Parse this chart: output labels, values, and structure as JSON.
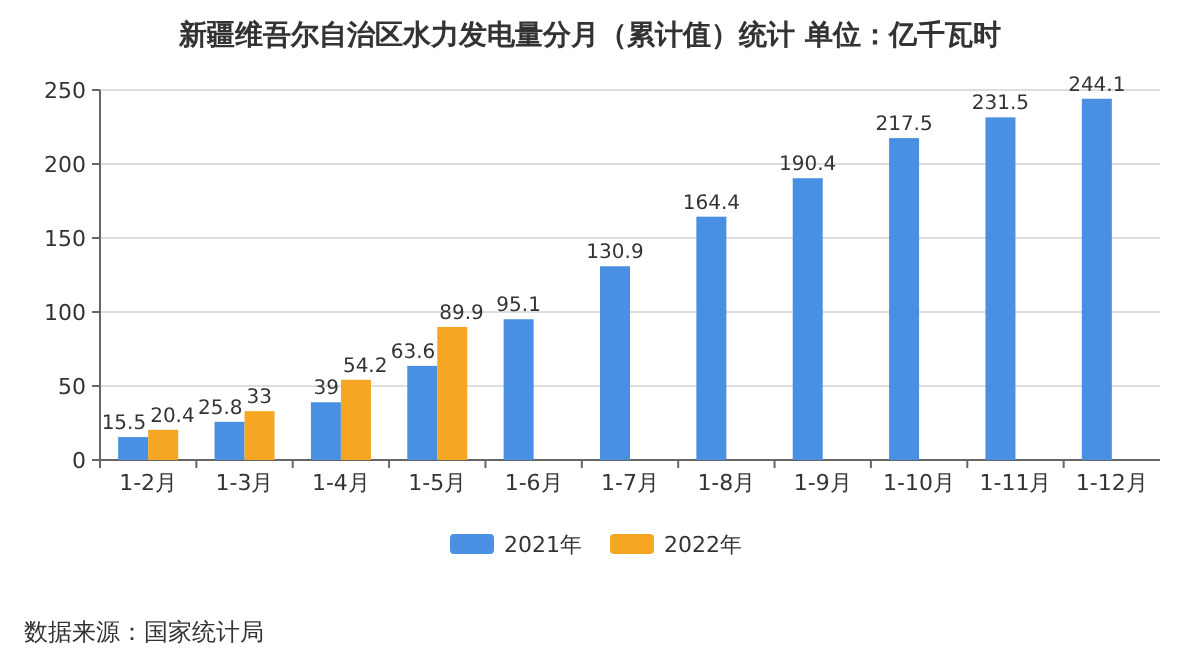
{
  "chart_data": {
    "type": "bar",
    "title": "新疆维吾尔自治区水力发电量分月（累计值）统计  单位：亿千瓦时",
    "categories": [
      "1-2月",
      "1-3月",
      "1-4月",
      "1-5月",
      "1-6月",
      "1-7月",
      "1-8月",
      "1-9月",
      "1-10月",
      "1-11月",
      "1-12月"
    ],
    "series": [
      {
        "name": "2021年",
        "color": "#4a90e2",
        "values": [
          15.5,
          25.8,
          39,
          63.6,
          95.1,
          130.9,
          164.4,
          190.4,
          217.5,
          231.5,
          244.1
        ]
      },
      {
        "name": "2022年",
        "color": "#f5a623",
        "values": [
          20.4,
          33,
          54.2,
          89.9,
          null,
          null,
          null,
          null,
          null,
          null,
          null
        ]
      }
    ],
    "ylim": [
      0,
      250
    ],
    "yticks": [
      0,
      50,
      100,
      150,
      200,
      250
    ],
    "grid": "y",
    "legend": "bottom",
    "data_labels": true,
    "annotations": [
      "数据来源：国家统计局"
    ]
  }
}
